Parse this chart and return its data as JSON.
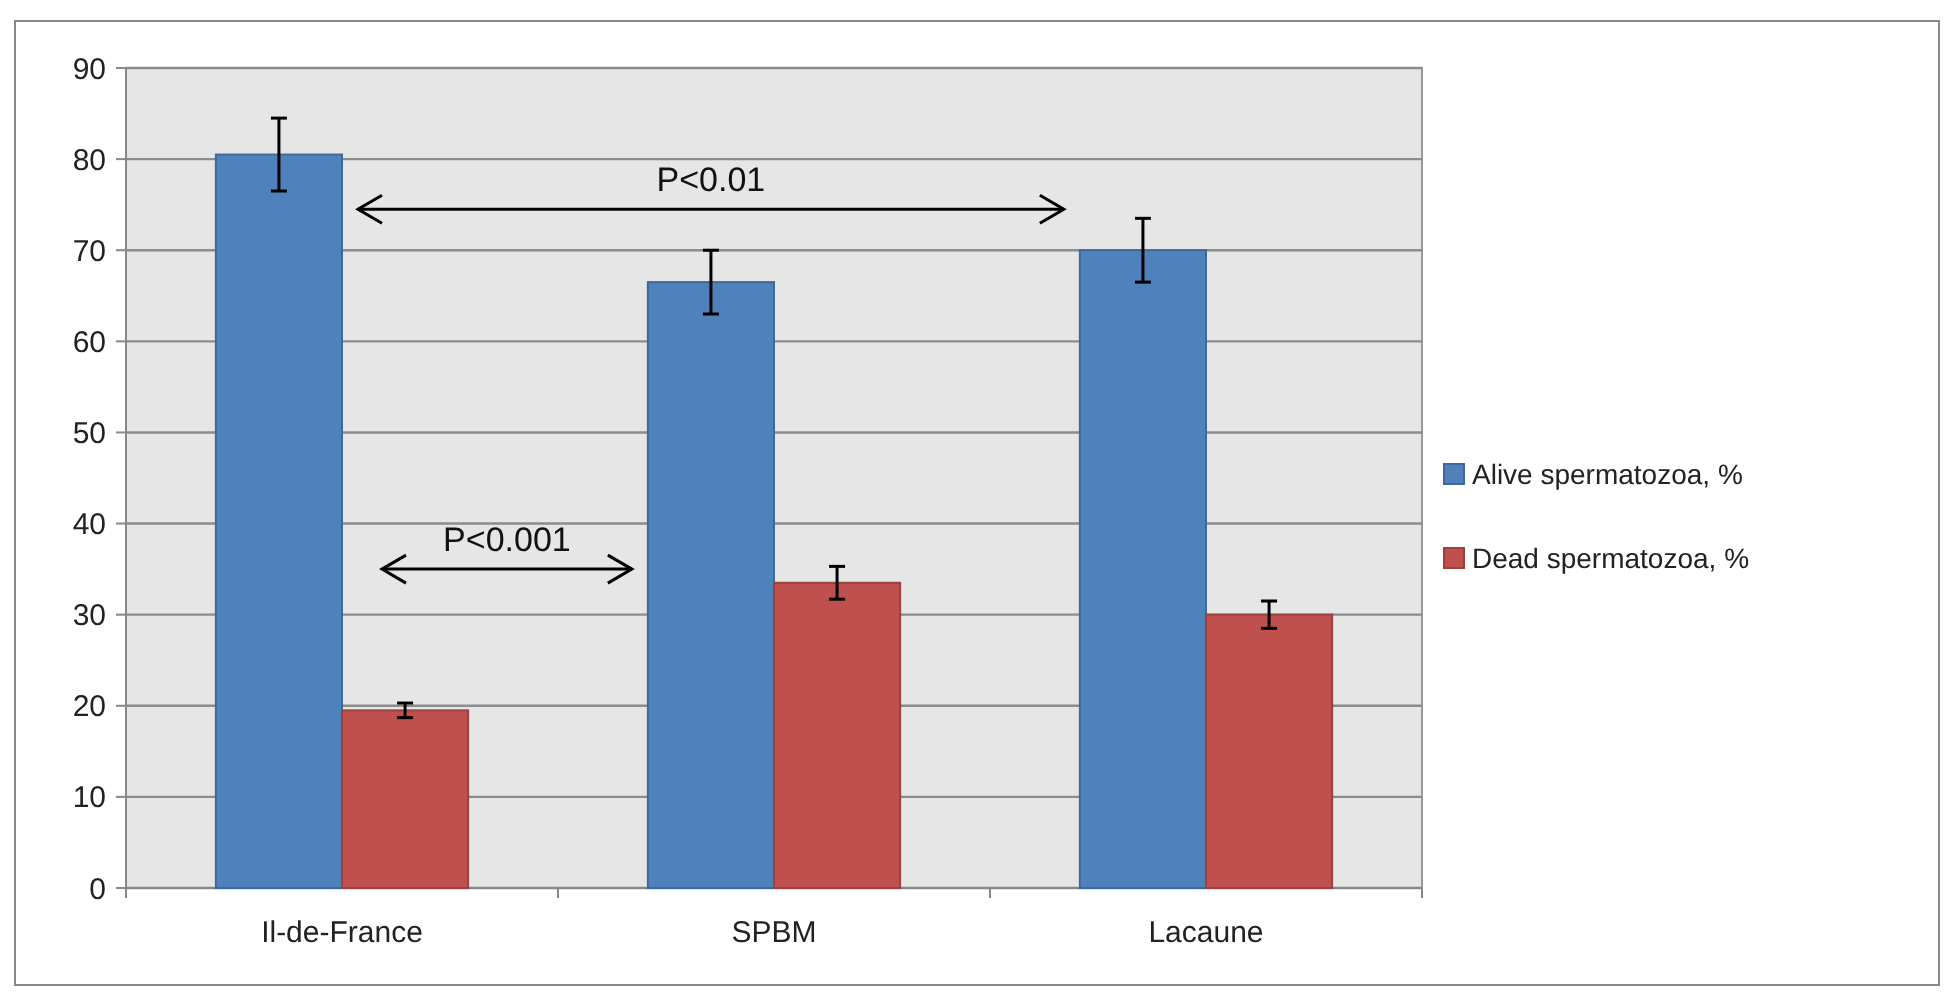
{
  "chart_data": {
    "type": "bar",
    "categories": [
      "Il-de-France",
      "SPBM",
      "Lacaune"
    ],
    "series": [
      {
        "name": "Alive spermatozoa, %",
        "color": "#4f81bd",
        "values": [
          80.5,
          66.5,
          70
        ],
        "errors": [
          4,
          3.5,
          3.5
        ]
      },
      {
        "name": "Dead spermatozoa, %",
        "color": "#c0504d",
        "values": [
          19.5,
          33.5,
          30
        ],
        "errors": [
          0.8,
          1.8,
          1.5
        ]
      }
    ],
    "ylim": [
      0,
      90
    ],
    "yticks": [
      0,
      10,
      20,
      30,
      40,
      50,
      60,
      70,
      80,
      90
    ],
    "grid": "y",
    "legend": "right",
    "annotations": [
      "P<0.01",
      "P<0.001"
    ]
  }
}
